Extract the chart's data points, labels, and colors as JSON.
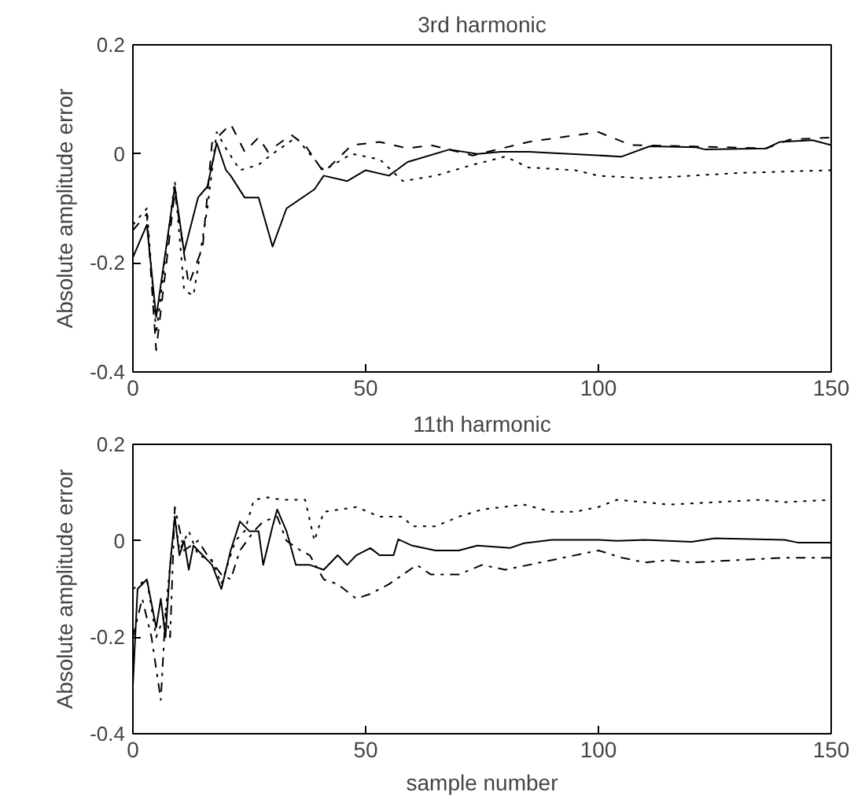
{
  "chart_data": [
    {
      "type": "line",
      "title": "3rd harmonic",
      "ylabel": "Absolute amplitude error",
      "xlim": [
        0,
        150
      ],
      "ylim": [
        -0.4,
        0.2
      ],
      "xticks": [
        0,
        50,
        100,
        150
      ],
      "yticks": [
        -0.4,
        -0.2,
        0,
        0.2
      ],
      "series": [
        {
          "color": "#000000",
          "line_style": "solid",
          "x": [
            0,
            3,
            5,
            9,
            11,
            14,
            16,
            18,
            20,
            21,
            24,
            27,
            30,
            33,
            39,
            41,
            46,
            50,
            55,
            59,
            68,
            74,
            79,
            85,
            105,
            111,
            121,
            123,
            136,
            139,
            146,
            150
          ],
          "values": [
            -0.19,
            -0.13,
            -0.3,
            -0.06,
            -0.18,
            -0.08,
            -0.06,
            0.02,
            -0.03,
            -0.04,
            -0.08,
            -0.08,
            -0.17,
            -0.1,
            -0.065,
            -0.04,
            -0.05,
            -0.03,
            -0.04,
            -0.015,
            0.008,
            0,
            0.004,
            0.004,
            -0.005,
            0.014,
            0.012,
            0.008,
            0.01,
            0.022,
            0.025,
            0.016
          ]
        },
        {
          "color": "#000000",
          "line_style": "dashed",
          "x": [
            0,
            3,
            5,
            9,
            12,
            15,
            17,
            21,
            24,
            27,
            29,
            34,
            37,
            41,
            47,
            53,
            59,
            64,
            73,
            85,
            100,
            107,
            119,
            136,
            141,
            150
          ],
          "values": [
            -0.14,
            -0.11,
            -0.36,
            -0.07,
            -0.24,
            -0.17,
            0.02,
            0.055,
            0.004,
            0.03,
            0.004,
            0.035,
            0.016,
            -0.034,
            0.016,
            0.022,
            0.01,
            0.016,
            -0.003,
            0.022,
            0.04,
            0.016,
            0.014,
            0.01,
            0.026,
            0.03
          ]
        },
        {
          "color": "#000000",
          "line_style": "dotted",
          "x": [
            0,
            3,
            5,
            9,
            11,
            13,
            16,
            18,
            20,
            23,
            27,
            30,
            35,
            41,
            47,
            53,
            58,
            65,
            73,
            80,
            85,
            95,
            100,
            110,
            130,
            150
          ],
          "values": [
            -0.13,
            -0.1,
            -0.33,
            -0.05,
            -0.25,
            -0.26,
            -0.1,
            0.04,
            0.01,
            -0.03,
            -0.02,
            0,
            0.03,
            -0.03,
            0,
            -0.01,
            -0.05,
            -0.04,
            -0.02,
            -0.005,
            -0.025,
            -0.03,
            -0.04,
            -0.045,
            -0.035,
            -0.03
          ]
        }
      ]
    },
    {
      "type": "line",
      "title": "11th harmonic",
      "xlabel": "sample number",
      "ylabel": "Absolute amplitude error",
      "xlim": [
        0,
        150
      ],
      "ylim": [
        -0.4,
        0.2
      ],
      "xticks": [
        0,
        50,
        100,
        150
      ],
      "yticks": [
        -0.4,
        -0.2,
        0,
        0.2
      ],
      "series": [
        {
          "color": "#000000",
          "line_style": "solid",
          "x": [
            0,
            1,
            3,
            5,
            6,
            7,
            8,
            9,
            10,
            11,
            12,
            13,
            15,
            17,
            19,
            21,
            23,
            25,
            27,
            28,
            30,
            31,
            33,
            35,
            38,
            41,
            44,
            46,
            48,
            51,
            53,
            56,
            57,
            60,
            65,
            70,
            74,
            81,
            84,
            90,
            100,
            104,
            110,
            120,
            125,
            140,
            143,
            150
          ],
          "values": [
            -0.3,
            -0.1,
            -0.08,
            -0.18,
            -0.12,
            -0.2,
            -0.05,
            0.05,
            -0.03,
            0,
            -0.06,
            -0.01,
            -0.03,
            -0.05,
            -0.1,
            -0.02,
            0.04,
            0.02,
            0.02,
            -0.05,
            0.03,
            0.065,
            0.02,
            -0.05,
            -0.05,
            -0.06,
            -0.03,
            -0.05,
            -0.03,
            -0.015,
            -0.03,
            -0.03,
            0.003,
            -0.01,
            -0.02,
            -0.02,
            -0.01,
            -0.015,
            -0.005,
            0.002,
            0.002,
            0,
            0.002,
            -0.002,
            0.005,
            0.002,
            -0.004,
            -0.004
          ]
        },
        {
          "color": "#000000",
          "line_style": "dotted",
          "x": [
            0,
            3,
            5,
            7,
            9,
            10,
            12,
            14,
            17,
            19,
            22,
            24,
            26,
            29,
            32,
            37,
            39,
            41,
            48,
            53,
            58,
            60,
            65,
            70,
            75,
            84,
            90,
            95,
            100,
            104,
            110,
            115,
            125,
            135,
            140,
            150
          ],
          "values": [
            -0.1,
            -0.08,
            -0.2,
            -0.15,
            0.05,
            -0.02,
            0.02,
            -0.03,
            -0.04,
            -0.09,
            0,
            0.02,
            0.085,
            0.09,
            0.085,
            0.085,
            0,
            0.06,
            0.07,
            0.05,
            0.05,
            0.03,
            0.03,
            0.05,
            0.065,
            0.075,
            0.06,
            0.06,
            0.07,
            0.085,
            0.08,
            0.075,
            0.08,
            0.085,
            0.08,
            0.085
          ]
        },
        {
          "color": "#000000",
          "line_style": "dashdot",
          "x": [
            0,
            2,
            4,
            6,
            7,
            8,
            9,
            11,
            14,
            16,
            19,
            21,
            23,
            26,
            28,
            31,
            33,
            36,
            38,
            41,
            44,
            48,
            51,
            55,
            58,
            61,
            64,
            70,
            75,
            80,
            90,
            100,
            105,
            110,
            115,
            120,
            130,
            140,
            150
          ],
          "values": [
            -0.2,
            -0.12,
            -0.2,
            -0.33,
            -0.15,
            -0.2,
            0.07,
            -0.02,
            0,
            -0.03,
            -0.07,
            -0.08,
            -0.02,
            0.02,
            0.04,
            0.05,
            0,
            -0.02,
            -0.03,
            -0.08,
            -0.09,
            -0.12,
            -0.11,
            -0.09,
            -0.07,
            -0.05,
            -0.07,
            -0.07,
            -0.05,
            -0.06,
            -0.04,
            -0.02,
            -0.035,
            -0.045,
            -0.04,
            -0.045,
            -0.04,
            -0.035,
            -0.035
          ]
        }
      ]
    }
  ]
}
